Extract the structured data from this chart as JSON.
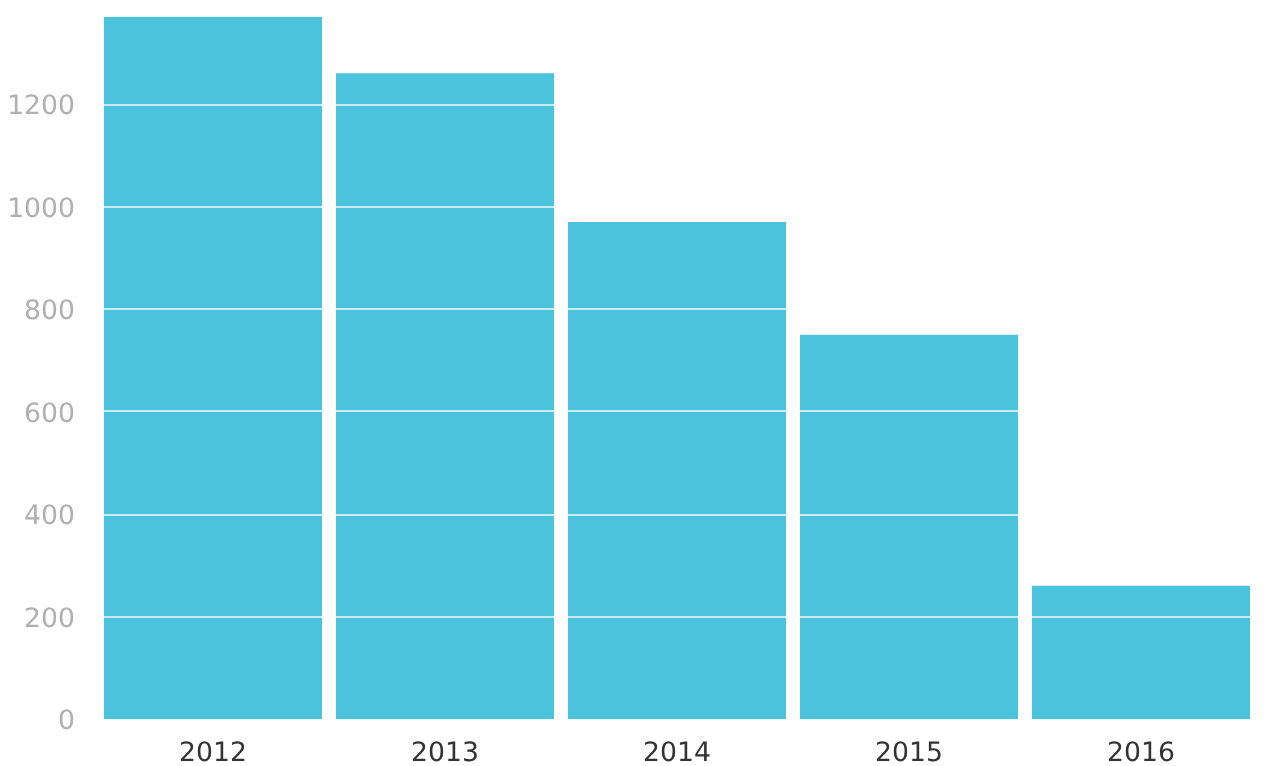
{
  "chart_data": {
    "type": "bar",
    "categories": [
      "2012",
      "2013",
      "2014",
      "2015",
      "2016"
    ],
    "values": [
      1370,
      1260,
      970,
      750,
      260
    ],
    "color": "#4bc3dc",
    "ylim": [
      0,
      1370
    ],
    "yticks": [
      0,
      200,
      400,
      600,
      800,
      1000,
      1200
    ],
    "grid": "y"
  }
}
